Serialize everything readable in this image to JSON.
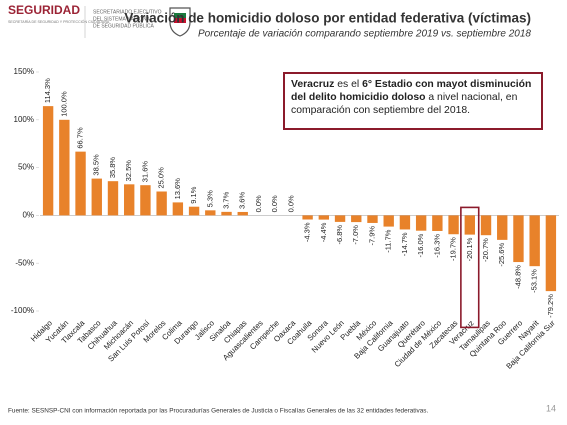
{
  "header": {
    "brand": "SEGURIDAD",
    "brand_sub": "SECRETARÍA DE SEGURIDAD Y PROTECCIÓN CIUDADANA",
    "agency": [
      "SECRETARIADO EJECUTIVO",
      "DEL SISTEMA NACIONAL",
      "DE SEGURIDAD PÚBLICA"
    ]
  },
  "chart_data": {
    "type": "bar",
    "title": "Variación de homicidio doloso por entidad federativa (víctimas)",
    "subtitle": "Porcentaje de variación comparando septiembre 2019 vs. septiembre 2018",
    "categories": [
      "Hidalgo",
      "Yucatán",
      "Tlaxcala",
      "Tabasco",
      "Chihuahua",
      "Michoacán",
      "San Luis Potosí",
      "Morelos",
      "Colima",
      "Durango",
      "Jalisco",
      "Sinaloa",
      "Chiapas",
      "Aguascalientes",
      "Campeche",
      "Oaxaca",
      "Coahuila",
      "Sonora",
      "Nuevo León",
      "Puebla",
      "México",
      "Baja California",
      "Guanajuato",
      "Querétaro",
      "Ciudad de México",
      "Zacatecas",
      "Veracruz",
      "Tamaulipas",
      "Quintana Roo",
      "Guerrero",
      "Nayarit",
      "Baja California Sur"
    ],
    "values": [
      114.3,
      100.0,
      66.7,
      38.5,
      35.8,
      32.5,
      31.6,
      25.0,
      13.6,
      9.1,
      5.3,
      3.7,
      3.6,
      0.0,
      0.0,
      0.0,
      -4.3,
      -4.4,
      -6.8,
      -7.0,
      -7.9,
      -11.7,
      -14.7,
      -16.0,
      -16.3,
      -19.7,
      -20.1,
      -20.7,
      -25.6,
      -48.8,
      -53.1,
      -79.2
    ],
    "value_labels": [
      "114.3%",
      "100.0%",
      "66.7%",
      "38.5%",
      "35.8%",
      "32.5%",
      "31.6%",
      "25.0%",
      "13.6%",
      "9.1%",
      "5.3%",
      "3.7%",
      "3.6%",
      "0.0%",
      "0.0%",
      "0.0%",
      "-4.3%",
      "-4.4%",
      "-6.8%",
      "-7.0%",
      "-7.9%",
      "-11.7%",
      "-14.7%",
      "-16.0%",
      "-16.3%",
      "-19.7%",
      "-20.1%",
      "-20.7%",
      "-25.6%",
      "-48.8%",
      "-53.1%",
      "-79.2%"
    ],
    "color": "#e8822a",
    "highlight": "Veracruz",
    "highlight_color": "#8b1a2b",
    "ylim": [
      -100,
      150
    ],
    "yticks": [
      {
        "value": -100,
        "label": "-100%"
      },
      {
        "value": -50,
        "label": "-50%"
      },
      {
        "value": 0,
        "label": "0%"
      },
      {
        "value": 50,
        "label": "50%"
      },
      {
        "value": 100,
        "label": "100%"
      },
      {
        "value": 150,
        "label": "150%"
      }
    ],
    "grid": false,
    "annotation": [
      {
        "text": "Veracruz",
        "bold": true
      },
      {
        "text": " es el ",
        "bold": false
      },
      {
        "text": "6° Estadio con mayot disminución del delito homicidio doloso",
        "bold": true
      },
      {
        "text": " a nivel nacional, en comparación con septiembre del 2018.",
        "bold": false
      }
    ]
  },
  "footer": {
    "source": "Fuente: SESNSP-CNI con información reportada por las Procuradurías Generales de Justicia o Fiscalías Generales de las 32 entidades federativas.",
    "page": "14"
  }
}
